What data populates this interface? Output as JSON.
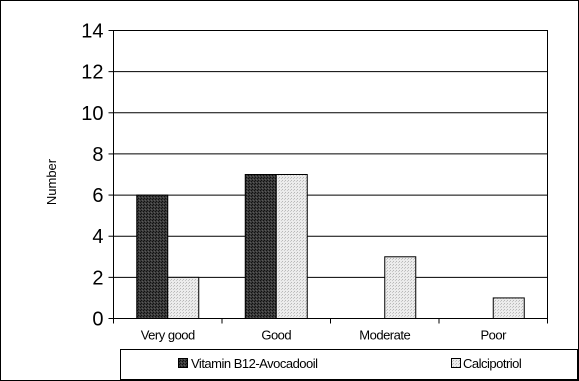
{
  "chart_data": {
    "type": "bar",
    "categories": [
      "Very good",
      "Good",
      "Moderate",
      "Poor"
    ],
    "series": [
      {
        "name": "Vitamin B12-Avocadooil",
        "values": [
          6,
          7,
          0,
          0
        ],
        "color": "#333333"
      },
      {
        "name": "Calcipotriol",
        "values": [
          2,
          7,
          3,
          1
        ],
        "color": "#dcdcdc"
      }
    ],
    "title": "",
    "xlabel": "",
    "ylabel": "Number",
    "ylim": [
      0,
      14
    ],
    "yticks": [
      "0",
      "2",
      "4",
      "6",
      "8",
      "10",
      "12",
      "14"
    ],
    "grid": true,
    "legend": "bottom"
  }
}
